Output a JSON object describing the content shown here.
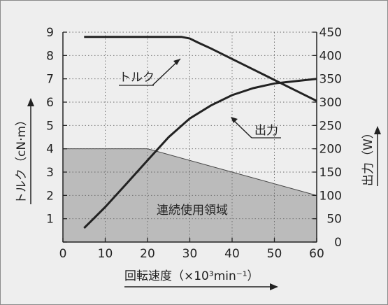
{
  "chart_data": {
    "type": "line",
    "xlabel": "回転速度（×10³min⁻¹）",
    "ylabel_left": "トルク（cN·m）",
    "ylabel_right": "出力（W）",
    "xlim": [
      0,
      60
    ],
    "ylim_left": [
      0,
      9
    ],
    "ylim_right": [
      0,
      450
    ],
    "x_ticks": [
      "0",
      "10",
      "20",
      "30",
      "40",
      "50",
      "60"
    ],
    "y_left_ticks": [
      "0",
      "1",
      "2",
      "3",
      "4",
      "5",
      "6",
      "7",
      "8",
      "9"
    ],
    "y_right_ticks": [
      "0",
      "50",
      "100",
      "150",
      "200",
      "250",
      "300",
      "350",
      "400",
      "450"
    ],
    "grid": true,
    "series": [
      {
        "name": "トルク",
        "axis": "left",
        "x": [
          5,
          10,
          15,
          20,
          25,
          28,
          30,
          32,
          35,
          40,
          45,
          50,
          55,
          60
        ],
        "y": [
          8.8,
          8.8,
          8.8,
          8.8,
          8.8,
          8.8,
          8.73,
          8.55,
          8.3,
          7.85,
          7.4,
          6.95,
          6.5,
          6.05
        ]
      },
      {
        "name": "出力",
        "axis": "right",
        "x": [
          5,
          10,
          15,
          20,
          25,
          30,
          35,
          40,
          45,
          50,
          55,
          60
        ],
        "y": [
          30,
          75,
          125,
          175,
          225,
          265,
          293,
          315,
          330,
          340,
          345,
          350
        ]
      }
    ],
    "region": {
      "name": "連続使用領域",
      "axis": "left",
      "x": [
        0,
        20,
        60
      ],
      "y": [
        4,
        4,
        2
      ]
    },
    "colors": {
      "background": "#eeeeee",
      "region_fill": "#bbbbbb",
      "line": "#222222",
      "grid": "#666666"
    }
  }
}
